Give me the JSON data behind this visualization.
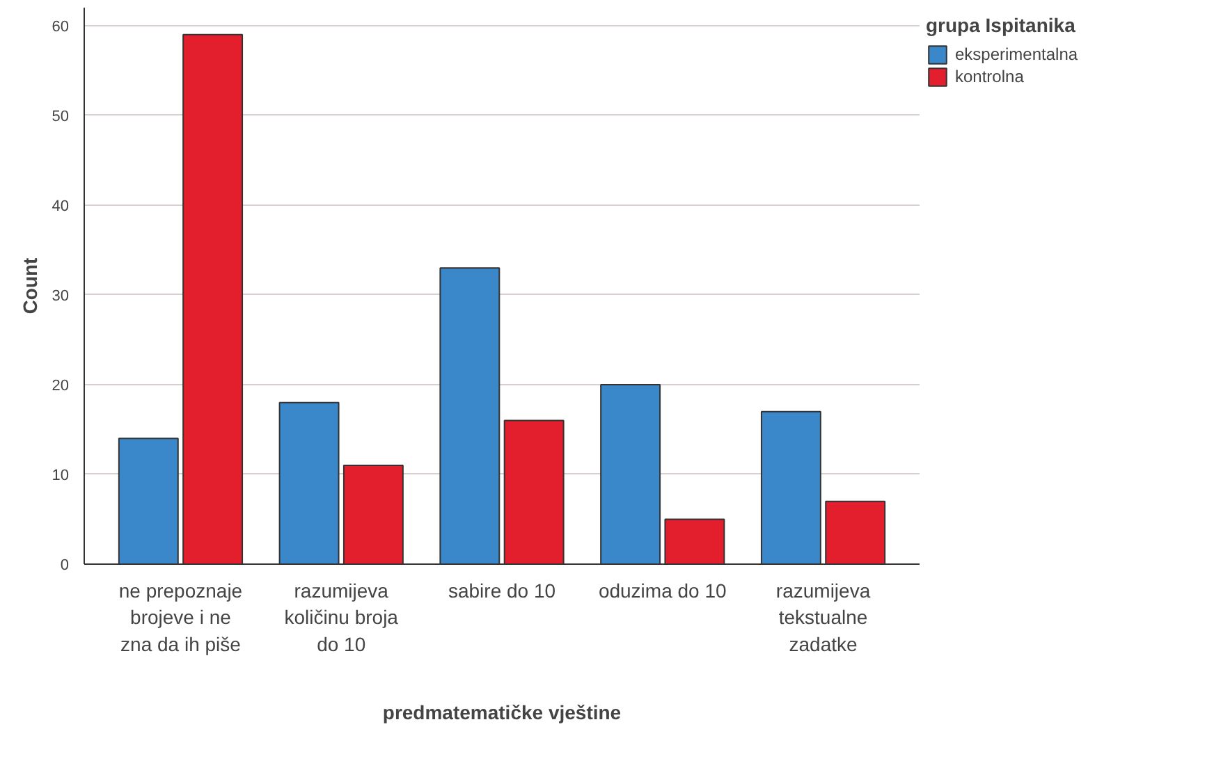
{
  "chart_data": {
    "type": "bar",
    "xlabel": "predmatematičke vještine",
    "ylabel": "Count",
    "legend_title": "grupa Ispitanika",
    "categories": [
      "ne prepoznaje brojeve i ne zna da ih piše",
      "razumijeva količinu broja do 10",
      "sabire do 10",
      "oduzima do 10",
      "razumijeva tekstualne zadatke"
    ],
    "series": [
      {
        "name": "eksperimentalna",
        "color": "#3a87c9",
        "values": [
          14,
          18,
          33,
          20,
          17
        ]
      },
      {
        "name": "kontrolna",
        "color": "#e31e2d",
        "values": [
          59,
          11,
          16,
          5,
          7
        ]
      }
    ],
    "ylim": [
      0,
      62
    ],
    "yticks": [
      0,
      10,
      20,
      30,
      40,
      50,
      60
    ],
    "grid": "y",
    "legend": "right"
  }
}
